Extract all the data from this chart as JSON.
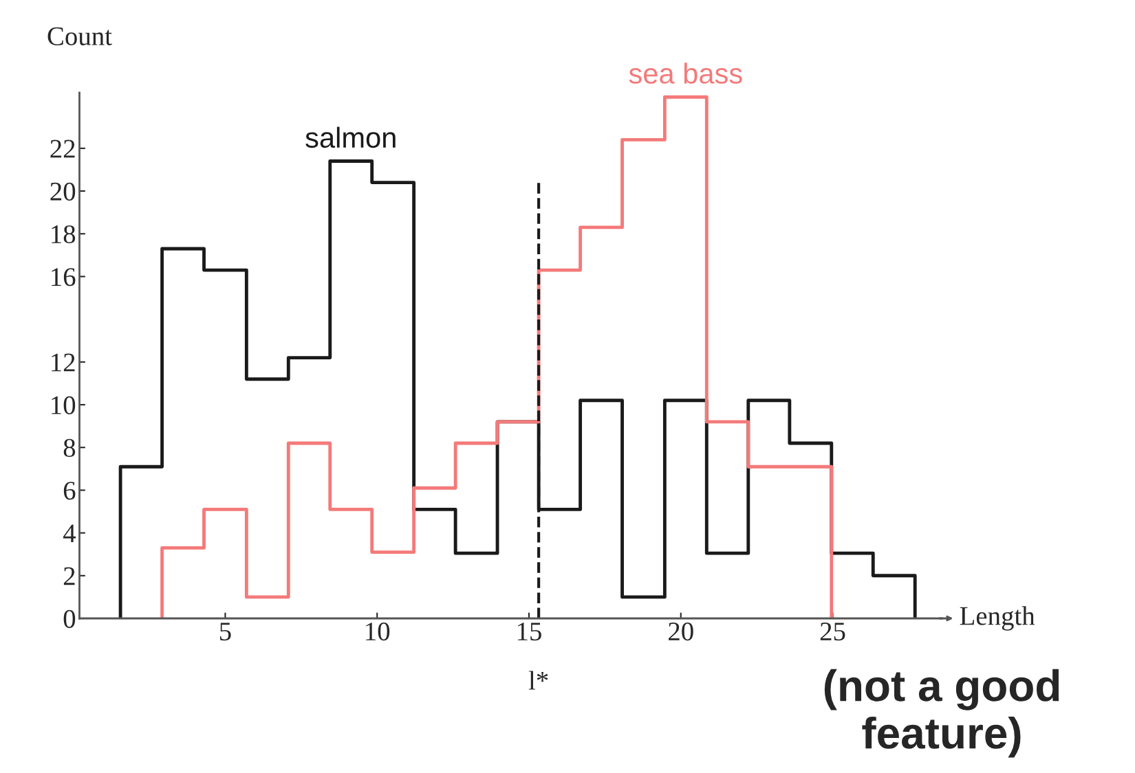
{
  "chart_data": {
    "type": "histogram",
    "xlabel": "Length",
    "ylabel": "Count",
    "bins": [
      1.55,
      2.92,
      4.3,
      5.7,
      7.08,
      8.45,
      9.83,
      11.21,
      12.58,
      13.96,
      15.32,
      16.69,
      18.07,
      19.47,
      20.85,
      22.22,
      23.58,
      24.96,
      26.33,
      27.71
    ],
    "series": [
      {
        "name": "salmon",
        "color": "#1a1a1a",
        "values": [
          7.1,
          17.3,
          16.3,
          11.2,
          12.2,
          21.4,
          20.4,
          5.1,
          3.05,
          9.2,
          5.1,
          10.2,
          1.0,
          10.2,
          3.05,
          10.2,
          8.2,
          3.05,
          2.0
        ]
      },
      {
        "name": "sea bass",
        "color": "#f47a7a",
        "bins": [
          2.92,
          4.3,
          5.7,
          7.08,
          8.45,
          9.83,
          11.21,
          12.58,
          13.96,
          15.32,
          16.69,
          18.07,
          19.47,
          20.85,
          22.22,
          23.58,
          24.96
        ],
        "values": [
          3.3,
          5.1,
          1.0,
          8.2,
          5.1,
          3.1,
          6.1,
          8.2,
          9.2,
          16.3,
          18.3,
          22.4,
          24.4,
          9.2,
          7.1,
          7.1
        ]
      }
    ],
    "xlim": [
      0.2,
      28.6
    ],
    "xticks": [
      5,
      10,
      15,
      20,
      25
    ],
    "ylim": [
      0,
      24.6
    ],
    "yticks": [
      0,
      2,
      4,
      6,
      8,
      10,
      12,
      16,
      18,
      20,
      22
    ],
    "ref_lines": [
      {
        "axis": "x",
        "value": 15.32,
        "label": "l*",
        "line_style": "dashed",
        "color": "#1a1a1a"
      }
    ],
    "annotations": [
      "(not a good feature)"
    ],
    "grid": false,
    "legend": false
  }
}
